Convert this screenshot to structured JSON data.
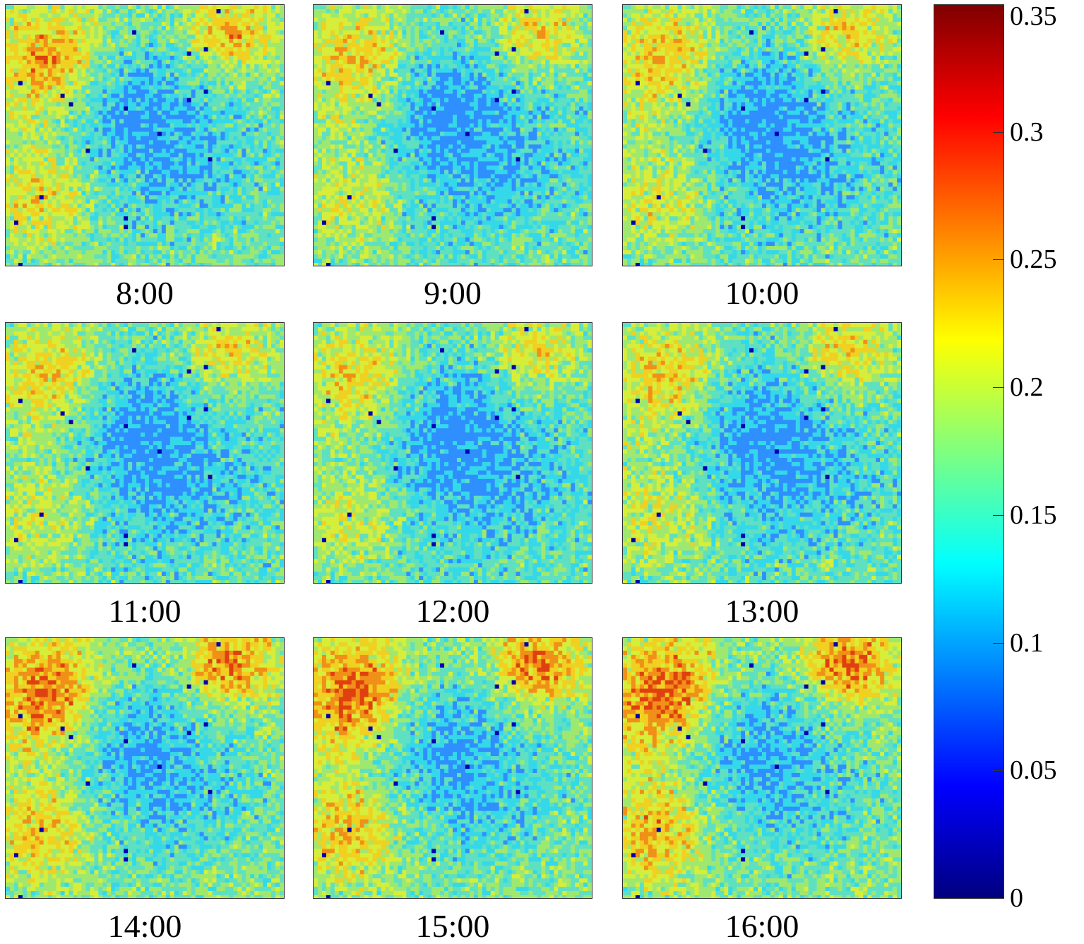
{
  "panels": [
    {
      "time": "8:00",
      "warm": 0.55
    },
    {
      "time": "9:00",
      "warm": 0.3
    },
    {
      "time": "10:00",
      "warm": 0.35
    },
    {
      "time": "11:00",
      "warm": 0.25
    },
    {
      "time": "12:00",
      "warm": 0.2
    },
    {
      "time": "13:00",
      "warm": 0.3
    },
    {
      "time": "14:00",
      "warm": 0.85
    },
    {
      "time": "15:00",
      "warm": 0.9
    },
    {
      "time": "16:00",
      "warm": 0.95
    }
  ],
  "colorbar": {
    "min": 0,
    "max": 0.35,
    "ticks": [
      "0.35",
      "0.3",
      "0.25",
      "0.2",
      "0.15",
      "0.1",
      "0.05",
      "0"
    ],
    "tick_values": [
      0.35,
      0.3,
      0.25,
      0.2,
      0.15,
      0.1,
      0.05,
      0
    ],
    "colormap": "jet",
    "colors": [
      "#00007f",
      "#0000ff",
      "#007fff",
      "#00ffff",
      "#7fff7f",
      "#ffff00",
      "#ff7f00",
      "#ff0000",
      "#7f0000"
    ]
  }
}
